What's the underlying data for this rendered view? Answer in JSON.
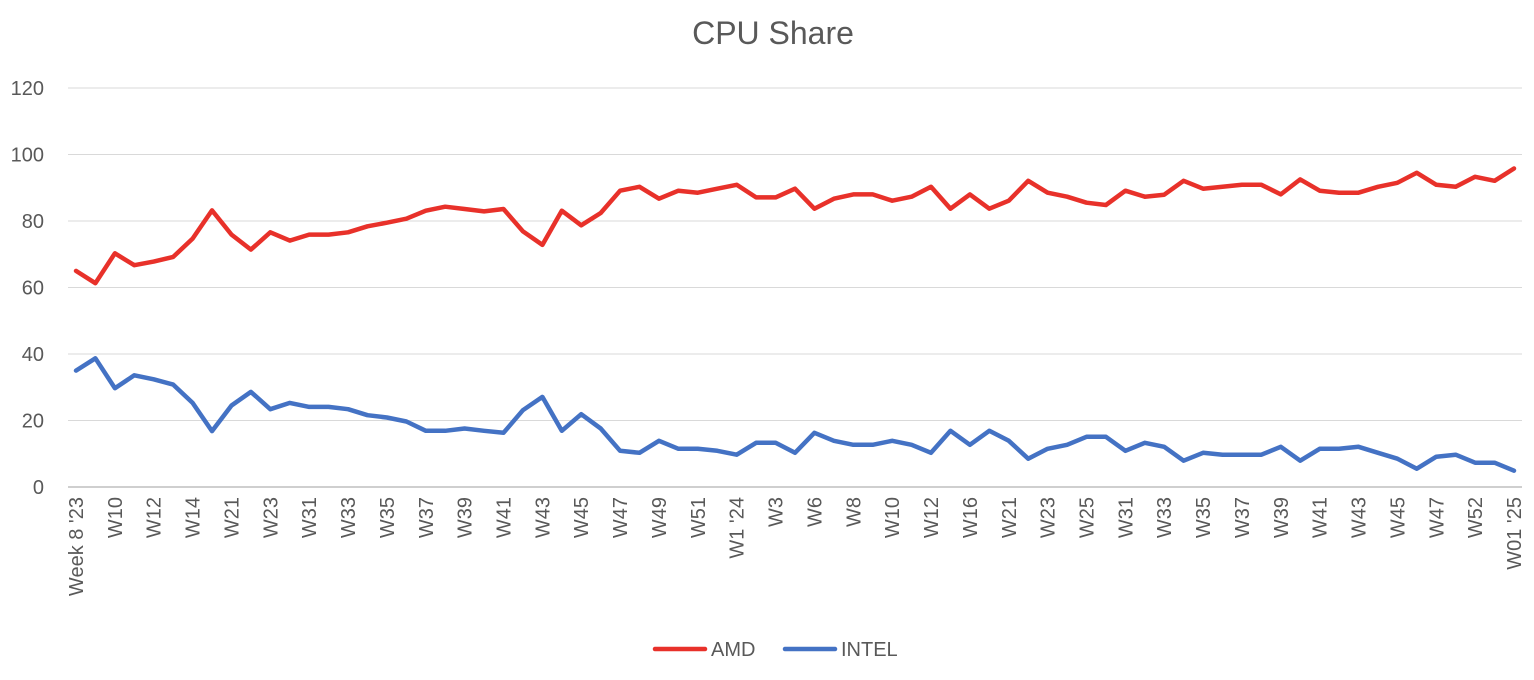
{
  "chart_data": {
    "type": "line",
    "title": "CPU Share",
    "xlabel": "",
    "ylabel": "",
    "ylim": [
      0,
      120
    ],
    "yticks": [
      0,
      20,
      40,
      60,
      80,
      100,
      120
    ],
    "grid": true,
    "legend_position": "bottom",
    "x_tick_labels": [
      "Week 8 '23",
      "W10",
      "W12",
      "W14",
      "W21",
      "W23",
      "W31",
      "W33",
      "W35",
      "W37",
      "W39",
      "W41",
      "W43",
      "W45",
      "W47",
      "W49",
      "W51",
      "W1 '24",
      "W3",
      "W6",
      "W8",
      "W10",
      "W12",
      "W16",
      "W21",
      "W23",
      "W25",
      "W31",
      "W33",
      "W35",
      "W37",
      "W39",
      "W41",
      "W43",
      "W45",
      "W47",
      "W52",
      "W01 '25"
    ],
    "series": [
      {
        "name": "AMD",
        "color": "#E8312A",
        "values": [
          65,
          61.3,
          70.3,
          66.7,
          67.8,
          69.2,
          74.7,
          83.2,
          75.9,
          71.4,
          76.6,
          74.1,
          75.9,
          75.9,
          76.6,
          78.4,
          79.5,
          80.7,
          83.1,
          84.3,
          83.6,
          82.9,
          83.6,
          76.9,
          72.8,
          83.1,
          78.7,
          82.4,
          89.1,
          90.3,
          86.7,
          89.1,
          88.5,
          89.7,
          90.9,
          87.1,
          87.1,
          89.7,
          83.7,
          86.7,
          88,
          88,
          86.1,
          87.3,
          90.3,
          83.7,
          88,
          83.7,
          86.1,
          92.1,
          88.5,
          87.3,
          85.5,
          84.8,
          89.1,
          87.3,
          87.9,
          92.1,
          89.7,
          90.3,
          90.9,
          90.9,
          88,
          92.5,
          89.1,
          88.5,
          88.5,
          90.3,
          91.5,
          94.5,
          90.9,
          90.3,
          93.3,
          92.1,
          95.8
        ]
      },
      {
        "name": "INTEL",
        "color": "#4472C4",
        "values": [
          35,
          38.7,
          29.7,
          33.6,
          32.4,
          30.8,
          25.3,
          16.8,
          24.5,
          28.6,
          23.4,
          25.3,
          24.1,
          24.1,
          23.4,
          21.6,
          20.9,
          19.7,
          16.9,
          16.9,
          17.6,
          16.9,
          16.3,
          23.1,
          27.1,
          16.9,
          21.9,
          17.6,
          10.9,
          10.3,
          13.9,
          11.5,
          11.5,
          10.9,
          9.7,
          13.3,
          13.3,
          10.3,
          16.3,
          13.9,
          12.7,
          12.7,
          13.9,
          12.7,
          10.3,
          16.9,
          12.7,
          16.9,
          13.9,
          8.5,
          11.5,
          12.7,
          15.1,
          15.1,
          10.9,
          13.3,
          12.1,
          7.9,
          10.3,
          9.7,
          9.7,
          9.7,
          12.1,
          7.9,
          11.5,
          11.5,
          12.1,
          10.3,
          8.5,
          5.5,
          9.1,
          9.7,
          7.3,
          7.3,
          4.9
        ]
      }
    ]
  }
}
